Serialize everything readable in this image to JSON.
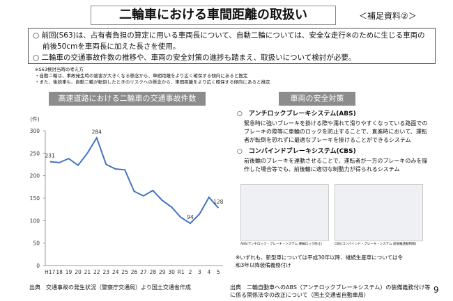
{
  "header": {
    "title": "二輪車における車間距離の取扱い",
    "tag": "＜補足資料②＞"
  },
  "bullets": [
    "前回(S63)は、占有者負担の算定に用いる車両長について、自動二輪については、安全な走行※のために生じる車両の前後50cmを車両長に加えた長さを使用。",
    "二輪車の交通事故件数の推移や、車両の安全対策の進捗も踏まえ、取扱いについて検討が必要。"
  ],
  "notes": [
    "※S63検討当時の考え方",
    "・自動二輪は、事故発生時の被害が大きくなる懸念から、車間距離をより広く確保する傾向にあると推定",
    "・また、後続車も、自動二輪が転倒したときのリスクへの懸念から、車間距離をより広く確保する傾向にあると推定"
  ],
  "chart_data": {
    "type": "line",
    "title": "高速道路における二輪車の交通事故件数",
    "y_label": "(件)",
    "categories": [
      "H17",
      "18",
      "19",
      "20",
      "21",
      "22",
      "23",
      "24",
      "25",
      "26",
      "27",
      "28",
      "29",
      "30",
      "R1",
      "2",
      "3",
      "4",
      "5"
    ],
    "values": [
      231,
      229,
      238,
      223,
      250,
      284,
      225,
      215,
      213,
      165,
      155,
      167,
      145,
      130,
      107,
      94,
      115,
      152,
      128
    ],
    "value_labels": [
      "231",
      null,
      null,
      null,
      null,
      "284",
      null,
      null,
      null,
      null,
      null,
      null,
      null,
      null,
      null,
      "94",
      null,
      null,
      "128"
    ],
    "color": "#4472c4",
    "ylim": [
      0,
      300
    ],
    "yticks": [
      0,
      50,
      100,
      150,
      200,
      250,
      300
    ],
    "grid": false
  },
  "safety": {
    "title": "車両の安全対策",
    "items": [
      {
        "name": "アンチロックブレーキシステム(ABS)",
        "text": "緊急時に強いブレーキを掛ける際や濡れて滑りやすくなっている路面でのブレーキの際等に車輪のロックを防止することで、直進時において、運転者が転倒を恐れずに最適なブレーキを掛けることができるシステム"
      },
      {
        "name": "コンバインドブレーキシステム(CBS)",
        "text": "前後輪のブレーキを連動させることで、運転者が一方のブレーキのみを操作した場合等でも、前後輪に適切な制動力が得られるシステム"
      }
    ],
    "captions": [
      "ABS(アンチロック・ブレーキ・システム 車輪ロック防止)",
      "CBS(コンバインド・ブレーキ・システム 前後輪連動制御)"
    ],
    "note": "※いずれも、新型車については平成30年以降、継続生産車については令和3年以降装備義務付け"
  },
  "sources": [
    "出典　交通事故の発生状況（警察庁交通局）より国土交通省作成",
    "出典　二輪自動車へのABS（アンチロックブレーキシステム）の装備義務付け等に係る関係法令の改正について（国土交通省自動車局）"
  ],
  "page": "9"
}
